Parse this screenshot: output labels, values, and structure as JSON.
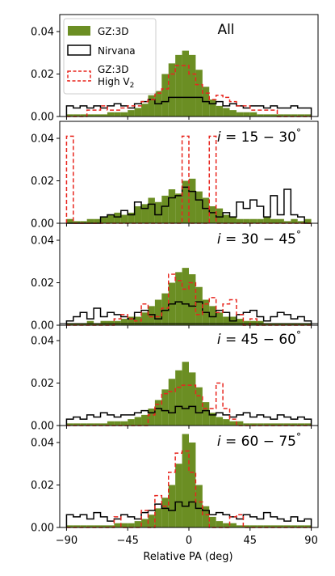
{
  "figure": {
    "xlabel": "Relative PA (deg)",
    "xticks": [
      -90,
      -45,
      0,
      45,
      90
    ],
    "xtick_labels": [
      "−90",
      "−45",
      "0",
      "45",
      "90"
    ],
    "legend": {
      "placement": "top-left of first panel",
      "entries": [
        {
          "label": "GZ:3D",
          "style": "filled",
          "color": "#6b8e23"
        },
        {
          "label": "Nirvana",
          "style": "step",
          "color": "#000000"
        },
        {
          "label": "GZ:3D",
          "label2": "High V",
          "subscript": "2",
          "style": "dashed",
          "color": "#e8261f"
        }
      ]
    }
  },
  "chart_data": [
    {
      "type": "histogram",
      "title": "All",
      "xlim": [
        -95,
        95
      ],
      "ylim": [
        0,
        0.048
      ],
      "yticks": [
        0.0,
        0.02,
        0.04
      ],
      "ytick_labels": [
        "0.00",
        "0.02",
        "0.04"
      ],
      "bin_edges_start": -90,
      "bin_width": 5,
      "series": [
        {
          "name": "GZ:3D",
          "values": [
            0.001,
            0.001,
            0.001,
            0.001,
            0.001,
            0.001,
            0.002,
            0.002,
            0.002,
            0.003,
            0.004,
            0.006,
            0.01,
            0.012,
            0.02,
            0.025,
            0.029,
            0.031,
            0.029,
            0.022,
            0.014,
            0.008,
            0.005,
            0.004,
            0.003,
            0.002,
            0.002,
            0.002,
            0.001,
            0.001,
            0.001,
            0.001,
            0.001,
            0.001,
            0.001,
            0.001
          ]
        },
        {
          "name": "Nirvana",
          "values": [
            0.005,
            0.004,
            0.005,
            0.004,
            0.005,
            0.004,
            0.005,
            0.006,
            0.005,
            0.004,
            0.006,
            0.007,
            0.008,
            0.006,
            0.007,
            0.009,
            0.009,
            0.009,
            0.009,
            0.009,
            0.007,
            0.006,
            0.007,
            0.005,
            0.006,
            0.005,
            0.004,
            0.005,
            0.005,
            0.004,
            0.005,
            0.004,
            0.004,
            0.005,
            0.004,
            0.004
          ]
        },
        {
          "name": "GZ:3D High V2",
          "values": [
            0,
            0,
            0,
            0.003,
            0.003,
            0.005,
            0.003,
            0.003,
            0.004,
            0.005,
            0.005,
            0.007,
            0.008,
            0.011,
            0.013,
            0.02,
            0.024,
            0.024,
            0.02,
            0.015,
            0.011,
            0.008,
            0.01,
            0.009,
            0.007,
            0.005,
            0.005,
            0.003,
            0.003,
            0.003,
            0.003,
            0,
            0,
            0,
            0,
            0
          ]
        }
      ]
    },
    {
      "type": "histogram",
      "title": "i = 15 − 30 °",
      "xlim": [
        -95,
        95
      ],
      "ylim": [
        0,
        0.048
      ],
      "yticks": [
        0.0,
        0.02,
        0.04
      ],
      "ytick_labels": [
        "0.00",
        "0.02",
        "0.04"
      ],
      "bin_edges_start": -90,
      "bin_width": 5,
      "series": [
        {
          "name": "GZ:3D",
          "values": [
            0.002,
            0.001,
            0.001,
            0.002,
            0.002,
            0.003,
            0.004,
            0.005,
            0.004,
            0.005,
            0.008,
            0.009,
            0.012,
            0.01,
            0.013,
            0.016,
            0.014,
            0.02,
            0.021,
            0.015,
            0.012,
            0.008,
            0.007,
            0.004,
            0.003,
            0.002,
            0.002,
            0.002,
            0.002,
            0.003,
            0.002,
            0.002,
            0.001,
            0.002,
            0.001,
            0.002
          ]
        },
        {
          "name": "Nirvana",
          "values": [
            0,
            0,
            0,
            0,
            0,
            0.003,
            0.004,
            0.003,
            0.006,
            0.004,
            0.01,
            0.007,
            0.009,
            0.004,
            0.008,
            0.012,
            0.013,
            0.017,
            0.015,
            0.011,
            0.007,
            0.005,
            0.003,
            0.005,
            0.003,
            0.01,
            0.007,
            0.011,
            0.008,
            0.003,
            0.013,
            0.004,
            0.016,
            0.004,
            0.003,
            0
          ]
        },
        {
          "name": "GZ:3D High V2",
          "values": [
            0.041,
            0,
            0,
            0,
            0,
            0,
            0,
            0,
            0,
            0,
            0,
            0,
            0,
            0,
            0,
            0,
            0,
            0.041,
            0,
            0,
            0,
            0.041,
            0,
            0,
            0,
            0,
            0,
            0,
            0,
            0,
            0,
            0,
            0,
            0,
            0,
            0
          ]
        }
      ]
    },
    {
      "type": "histogram",
      "title": "i = 30 − 45 °",
      "xlim": [
        -95,
        95
      ],
      "ylim": [
        0,
        0.048
      ],
      "yticks": [
        0.0,
        0.02,
        0.04
      ],
      "ytick_labels": [
        "0.00",
        "0.02",
        "0.04"
      ],
      "bin_edges_start": -90,
      "bin_width": 5,
      "series": [
        {
          "name": "GZ:3D",
          "values": [
            0.001,
            0.001,
            0.001,
            0.002,
            0.001,
            0.002,
            0.002,
            0.002,
            0.003,
            0.004,
            0.004,
            0.006,
            0.009,
            0.012,
            0.015,
            0.02,
            0.025,
            0.027,
            0.024,
            0.018,
            0.012,
            0.009,
            0.006,
            0.004,
            0.004,
            0.003,
            0.002,
            0.002,
            0.002,
            0.001,
            0.001,
            0.001,
            0.001,
            0.001,
            0.001,
            0.001
          ]
        },
        {
          "name": "Nirvana",
          "values": [
            0.002,
            0.004,
            0.006,
            0.003,
            0.008,
            0.004,
            0.006,
            0.005,
            0.004,
            0.003,
            0.006,
            0.007,
            0.005,
            0.003,
            0.007,
            0.01,
            0.011,
            0.01,
            0.009,
            0.011,
            0.006,
            0.004,
            0.007,
            0.006,
            0.002,
            0.005,
            0.006,
            0.007,
            0.004,
            0.002,
            0.004,
            0.006,
            0.005,
            0.003,
            0.004,
            0.002
          ]
        },
        {
          "name": "GZ:3D High V2",
          "values": [
            0,
            0,
            0,
            0,
            0,
            0,
            0,
            0.003,
            0.005,
            0.003,
            0.002,
            0.01,
            0.004,
            0.004,
            0.008,
            0.024,
            0.021,
            0.017,
            0.02,
            0.005,
            0.01,
            0.013,
            0.006,
            0.01,
            0.012,
            0.005,
            0,
            0.003,
            0,
            0,
            0,
            0,
            0,
            0,
            0,
            0
          ]
        }
      ]
    },
    {
      "type": "histogram",
      "title": "i = 45 − 60 °",
      "xlim": [
        -95,
        95
      ],
      "ylim": [
        0,
        0.048
      ],
      "yticks": [
        0.0,
        0.02,
        0.04
      ],
      "ytick_labels": [
        "0.00",
        "0.02",
        "0.04"
      ],
      "bin_edges_start": -90,
      "bin_width": 5,
      "series": [
        {
          "name": "GZ:3D",
          "values": [
            0.001,
            0.001,
            0.001,
            0.001,
            0.001,
            0.001,
            0.002,
            0.002,
            0.002,
            0.003,
            0.004,
            0.005,
            0.008,
            0.012,
            0.017,
            0.022,
            0.026,
            0.03,
            0.025,
            0.018,
            0.011,
            0.006,
            0.004,
            0.003,
            0.002,
            0.002,
            0.001,
            0.001,
            0.001,
            0.001,
            0.001,
            0.001,
            0.001,
            0.001,
            0.001,
            0.001
          ]
        },
        {
          "name": "Nirvana",
          "values": [
            0.003,
            0.004,
            0.003,
            0.005,
            0.004,
            0.006,
            0.005,
            0.004,
            0.005,
            0.005,
            0.006,
            0.007,
            0.006,
            0.008,
            0.007,
            0.006,
            0.009,
            0.008,
            0.009,
            0.006,
            0.007,
            0.005,
            0.006,
            0.005,
            0.004,
            0.005,
            0.006,
            0.004,
            0.005,
            0.004,
            0.003,
            0.005,
            0.004,
            0.003,
            0.004,
            0.003
          ]
        },
        {
          "name": "GZ:3D High V2",
          "values": [
            0,
            0,
            0,
            0,
            0,
            0,
            0,
            0,
            0,
            0,
            0,
            0,
            0.005,
            0.01,
            0.015,
            0.016,
            0.018,
            0.019,
            0.019,
            0.014,
            0.008,
            0.008,
            0.02,
            0.008,
            0.003,
            0,
            0,
            0,
            0,
            0,
            0,
            0,
            0,
            0,
            0,
            0
          ]
        }
      ]
    },
    {
      "type": "histogram",
      "title": "i = 60 − 75 °",
      "xlim": [
        -95,
        95
      ],
      "ylim": [
        0,
        0.048
      ],
      "yticks": [
        0.0,
        0.02,
        0.04
      ],
      "ytick_labels": [
        "0.00",
        "0.02",
        "0.04"
      ],
      "bin_edges_start": -90,
      "bin_width": 5,
      "series": [
        {
          "name": "GZ:3D",
          "values": [
            0.001,
            0.001,
            0.001,
            0.001,
            0.001,
            0.001,
            0.001,
            0.002,
            0.002,
            0.002,
            0.003,
            0.004,
            0.006,
            0.009,
            0.014,
            0.02,
            0.03,
            0.044,
            0.04,
            0.02,
            0.01,
            0.005,
            0.003,
            0.002,
            0.002,
            0.001,
            0.001,
            0.001,
            0.001,
            0.001,
            0.001,
            0.001,
            0.001,
            0.001,
            0.001,
            0.001
          ]
        },
        {
          "name": "Nirvana",
          "values": [
            0.006,
            0.005,
            0.006,
            0.004,
            0.007,
            0.005,
            0.003,
            0.004,
            0.006,
            0.005,
            0.004,
            0.007,
            0.008,
            0.011,
            0.009,
            0.008,
            0.012,
            0.01,
            0.012,
            0.009,
            0.008,
            0.006,
            0.007,
            0.006,
            0.005,
            0.004,
            0.006,
            0.005,
            0.004,
            0.007,
            0.005,
            0.004,
            0.003,
            0.005,
            0.003,
            0.004
          ]
        },
        {
          "name": "GZ:3D High V2",
          "values": [
            0,
            0,
            0,
            0,
            0,
            0,
            0,
            0.005,
            0,
            0,
            0,
            0.008,
            0,
            0.015,
            0.01,
            0.026,
            0.035,
            0.036,
            0.026,
            0.012,
            0.006,
            0,
            0,
            0,
            0.005,
            0.006,
            0,
            0,
            0,
            0,
            0,
            0,
            0,
            0,
            0,
            0
          ]
        }
      ]
    }
  ]
}
